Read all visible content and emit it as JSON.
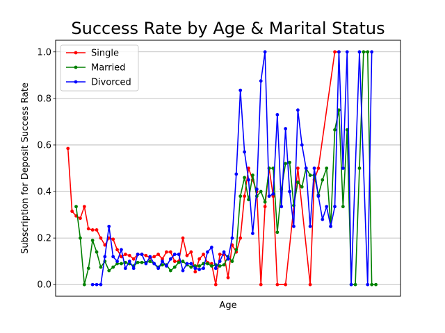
{
  "chart_data": {
    "type": "line",
    "title": "Success Rate by Age & Marital Status",
    "xlabel": "Age",
    "ylabel": "Subscription for Deposit Success Rate",
    "xlim": [
      17,
      101
    ],
    "ylim": [
      -0.05,
      1.05
    ],
    "yticks": [
      0.0,
      0.2,
      0.4,
      0.6,
      0.8,
      1.0
    ],
    "ytick_labels": [
      "0.0",
      "0.2",
      "0.4",
      "0.6",
      "0.8",
      "1.0"
    ],
    "grid": "horizontal",
    "legend_position": "top-left",
    "series": [
      {
        "name": "Single",
        "color": "#ff0000",
        "x": [
          20,
          21,
          22,
          23,
          24,
          25,
          26,
          27,
          28,
          29,
          30,
          31,
          32,
          33,
          34,
          35,
          36,
          37,
          38,
          39,
          40,
          41,
          42,
          43,
          44,
          45,
          46,
          47,
          48,
          49,
          50,
          51,
          52,
          53,
          54,
          55,
          56,
          57,
          58,
          59,
          60,
          61,
          62,
          63,
          64,
          65,
          66,
          67,
          68,
          69,
          70,
          71,
          73,
          76,
          79,
          80,
          81,
          85,
          86
        ],
        "y": [
          0.585,
          0.315,
          0.295,
          0.285,
          0.335,
          0.24,
          0.235,
          0.235,
          0.2,
          0.17,
          0.2,
          0.195,
          0.15,
          0.12,
          0.13,
          0.125,
          0.11,
          0.13,
          0.13,
          0.125,
          0.115,
          0.12,
          0.13,
          0.11,
          0.14,
          0.14,
          0.1,
          0.1,
          0.2,
          0.125,
          0.14,
          0.055,
          0.11,
          0.13,
          0.095,
          0.09,
          0.0,
          0.13,
          0.13,
          0.03,
          0.17,
          0.14,
          0.2,
          0.38,
          0.5,
          0.45,
          0.4,
          0.0,
          0.335,
          0.5,
          0.38,
          0.0,
          0.0,
          0.5,
          0.0,
          0.45,
          0.5,
          1.0,
          1.0
        ]
      },
      {
        "name": "Married",
        "color": "#008000",
        "x": [
          22,
          23,
          24,
          25,
          26,
          27,
          28,
          29,
          30,
          31,
          32,
          33,
          34,
          35,
          36,
          37,
          38,
          39,
          40,
          41,
          42,
          43,
          44,
          45,
          46,
          47,
          48,
          49,
          50,
          51,
          52,
          53,
          54,
          55,
          56,
          57,
          58,
          59,
          60,
          61,
          62,
          63,
          64,
          65,
          66,
          67,
          68,
          69,
          70,
          71,
          72,
          73,
          74,
          75,
          76,
          77,
          78,
          79,
          80,
          81,
          82,
          83,
          84,
          85,
          86,
          87,
          88,
          89,
          90,
          91,
          92,
          93,
          94,
          95
        ],
        "y": [
          0.335,
          0.2,
          0.0,
          0.07,
          0.19,
          0.14,
          0.075,
          0.1,
          0.06,
          0.075,
          0.09,
          0.09,
          0.095,
          0.09,
          0.08,
          0.095,
          0.095,
          0.095,
          0.1,
          0.09,
          0.075,
          0.085,
          0.085,
          0.06,
          0.075,
          0.095,
          0.1,
          0.085,
          0.075,
          0.08,
          0.08,
          0.09,
          0.09,
          0.08,
          0.085,
          0.08,
          0.085,
          0.12,
          0.1,
          0.15,
          0.38,
          0.46,
          0.365,
          0.47,
          0.38,
          0.4,
          0.355,
          0.5,
          0.5,
          0.225,
          0.41,
          0.52,
          0.525,
          0.34,
          0.44,
          0.42,
          0.5,
          0.47,
          0.47,
          0.385,
          0.45,
          0.5,
          0.25,
          0.665,
          0.75,
          0.335,
          0.665,
          0.0,
          0.0,
          0.5,
          1.0,
          1.0,
          0.0,
          0.0
        ]
      },
      {
        "name": "Divorced",
        "color": "#0000ff",
        "x": [
          26,
          27,
          28,
          29,
          30,
          31,
          32,
          33,
          34,
          35,
          36,
          37,
          38,
          39,
          40,
          41,
          42,
          43,
          44,
          45,
          46,
          47,
          48,
          49,
          50,
          51,
          52,
          53,
          54,
          55,
          56,
          57,
          58,
          59,
          60,
          61,
          62,
          63,
          64,
          65,
          66,
          67,
          68,
          69,
          70,
          71,
          72,
          73,
          74,
          75,
          76,
          77,
          78,
          79,
          80,
          81,
          82,
          83,
          84,
          85,
          86,
          87,
          88,
          89,
          91,
          93,
          94
        ],
        "y": [
          0.0,
          0.0,
          0.0,
          0.12,
          0.25,
          0.12,
          0.1,
          0.15,
          0.07,
          0.1,
          0.07,
          0.13,
          0.13,
          0.09,
          0.12,
          0.09,
          0.07,
          0.1,
          0.08,
          0.11,
          0.13,
          0.13,
          0.06,
          0.09,
          0.09,
          0.07,
          0.065,
          0.07,
          0.14,
          0.16,
          0.07,
          0.1,
          0.14,
          0.11,
          0.2,
          0.475,
          0.835,
          0.57,
          0.45,
          0.22,
          0.41,
          0.875,
          1.0,
          0.38,
          0.39,
          0.73,
          0.335,
          0.67,
          0.4,
          0.25,
          0.75,
          0.6,
          0.5,
          0.25,
          0.5,
          0.38,
          0.28,
          0.335,
          0.25,
          0.335,
          1.0,
          0.5,
          1.0,
          0.0,
          1.0,
          0.0,
          1.0
        ]
      }
    ]
  }
}
